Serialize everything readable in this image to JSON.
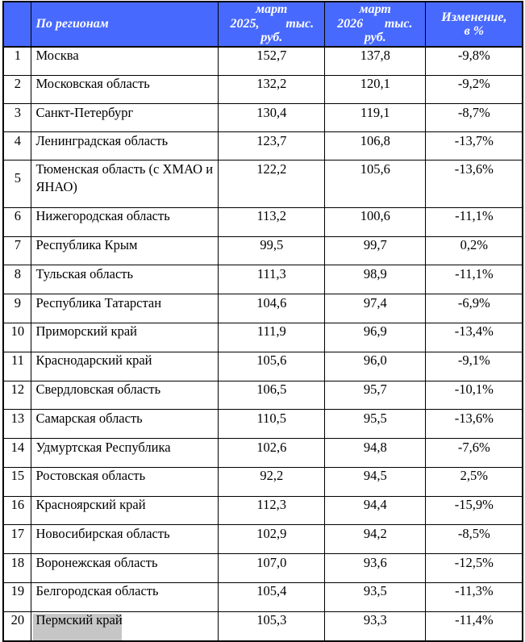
{
  "page": {
    "background_color": "#ffffff"
  },
  "table": {
    "accent_color": "#4769fe",
    "grid_color": "#000000",
    "header_text_color": "#ffffff",
    "body_text_color": "#000000",
    "selection_color": "#c6c6c6",
    "header": {
      "number_label": "",
      "regions_label": "По регионам",
      "col_mar2025": {
        "line1": "март",
        "line2_left": "2025,",
        "line2_right": "тыс.",
        "line3": "руб."
      },
      "col_mar2026": {
        "line1": "март",
        "line2_left": "2026",
        "line2_right": "тыс.",
        "line3": "руб."
      },
      "col_change": {
        "line1": "Изменение,",
        "line2": "в %"
      }
    },
    "rows": [
      {
        "num": "1",
        "region": "Москва",
        "mar2025": "152,7",
        "mar2026": "137,8",
        "change": "-9,8%",
        "selected": false
      },
      {
        "num": "2",
        "region": "Московская область",
        "mar2025": "132,2",
        "mar2026": "120,1",
        "change": "-9,2%",
        "selected": false
      },
      {
        "num": "3",
        "region": "Санкт-Петербург",
        "mar2025": "130,4",
        "mar2026": "119,1",
        "change": "-8,7%",
        "selected": false
      },
      {
        "num": "4",
        "region": "Ленинградская область",
        "mar2025": "123,7",
        "mar2026": "106,8",
        "change": "-13,7%",
        "selected": false
      },
      {
        "num": "5",
        "region": "Тюменская область (с ХМАО и ЯНАО)",
        "mar2025": "122,2",
        "mar2026": "105,6",
        "change": "-13,6%",
        "selected": false
      },
      {
        "num": "6",
        "region": "Нижегородская область",
        "mar2025": "113,2",
        "mar2026": "100,6",
        "change": "-11,1%",
        "selected": false
      },
      {
        "num": "7",
        "region": "Республика Крым",
        "mar2025": "99,5",
        "mar2026": "99,7",
        "change": "0,2%",
        "selected": false
      },
      {
        "num": "8",
        "region": "Тульская область",
        "mar2025": "111,3",
        "mar2026": "98,9",
        "change": "-11,1%",
        "selected": false
      },
      {
        "num": "9",
        "region": "Республика Татарстан",
        "mar2025": "104,6",
        "mar2026": "97,4",
        "change": "-6,9%",
        "selected": false
      },
      {
        "num": "10",
        "region": "Приморский край",
        "mar2025": "111,9",
        "mar2026": "96,9",
        "change": "-13,4%",
        "selected": false
      },
      {
        "num": "11",
        "region": "Краснодарский край",
        "mar2025": "105,6",
        "mar2026": "96,0",
        "change": "-9,1%",
        "selected": false
      },
      {
        "num": "12",
        "region": "Свердловская область",
        "mar2025": "106,5",
        "mar2026": "95,7",
        "change": "-10,1%",
        "selected": false
      },
      {
        "num": "13",
        "region": "Самарская область",
        "mar2025": "110,5",
        "mar2026": "95,5",
        "change": "-13,6%",
        "selected": false
      },
      {
        "num": "14",
        "region": "Удмуртская Республика",
        "mar2025": "102,6",
        "mar2026": "94,8",
        "change": "-7,6%",
        "selected": false
      },
      {
        "num": "15",
        "region": "Ростовская область",
        "mar2025": "92,2",
        "mar2026": "94,5",
        "change": "2,5%",
        "selected": false
      },
      {
        "num": "16",
        "region": "Красноярский край",
        "mar2025": "112,3",
        "mar2026": "94,4",
        "change": "-15,9%",
        "selected": false
      },
      {
        "num": "17",
        "region": "Новосибирская область",
        "mar2025": "102,9",
        "mar2026": "94,2",
        "change": "-8,5%",
        "selected": false
      },
      {
        "num": "18",
        "region": "Воронежская область",
        "mar2025": "107,0",
        "mar2026": "93,6",
        "change": "-12,5%",
        "selected": false
      },
      {
        "num": "19",
        "region": "Белгородская область",
        "mar2025": "105,4",
        "mar2026": "93,5",
        "change": "-11,3%",
        "selected": false
      },
      {
        "num": "20",
        "region": "Пермский край",
        "mar2025": "105,3",
        "mar2026": "93,3",
        "change": "-11,4%",
        "selected": true
      }
    ]
  },
  "chart_data": {
    "type": "table",
    "title": "",
    "columns": [
      "№",
      "По регионам",
      "март 2025, тыс. руб.",
      "март 2026 тыс. руб.",
      "Изменение, в %"
    ],
    "rows": [
      [
        "1",
        "Москва",
        "152,7",
        "137,8",
        "-9,8%"
      ],
      [
        "2",
        "Московская область",
        "132,2",
        "120,1",
        "-9,2%"
      ],
      [
        "3",
        "Санкт-Петербург",
        "130,4",
        "119,1",
        "-8,7%"
      ],
      [
        "4",
        "Ленинградская область",
        "123,7",
        "106,8",
        "-13,7%"
      ],
      [
        "5",
        "Тюменская область (с ХМАО и ЯНАО)",
        "122,2",
        "105,6",
        "-13,6%"
      ],
      [
        "6",
        "Нижегородская область",
        "113,2",
        "100,6",
        "-11,1%"
      ],
      [
        "7",
        "Республика Крым",
        "99,5",
        "99,7",
        "0,2%"
      ],
      [
        "8",
        "Тульская область",
        "111,3",
        "98,9",
        "-11,1%"
      ],
      [
        "9",
        "Республика Татарстан",
        "104,6",
        "97,4",
        "-6,9%"
      ],
      [
        "10",
        "Приморский край",
        "111,9",
        "96,9",
        "-13,4%"
      ],
      [
        "11",
        "Краснодарский край",
        "105,6",
        "96,0",
        "-9,1%"
      ],
      [
        "12",
        "Свердловская область",
        "106,5",
        "95,7",
        "-10,1%"
      ],
      [
        "13",
        "Самарская область",
        "110,5",
        "95,5",
        "-13,6%"
      ],
      [
        "14",
        "Удмуртская Республика",
        "102,6",
        "94,8",
        "-7,6%"
      ],
      [
        "15",
        "Ростовская область",
        "92,2",
        "94,5",
        "2,5%"
      ],
      [
        "16",
        "Красноярский край",
        "112,3",
        "94,4",
        "-15,9%"
      ],
      [
        "17",
        "Новосибирская область",
        "102,9",
        "94,2",
        "-8,5%"
      ],
      [
        "18",
        "Воронежская область",
        "107,0",
        "93,6",
        "-12,5%"
      ],
      [
        "19",
        "Белгородская область",
        "105,4",
        "93,5",
        "-11,3%"
      ],
      [
        "20",
        "Пермский край",
        "105,3",
        "93,3",
        "-11,4%"
      ]
    ]
  }
}
